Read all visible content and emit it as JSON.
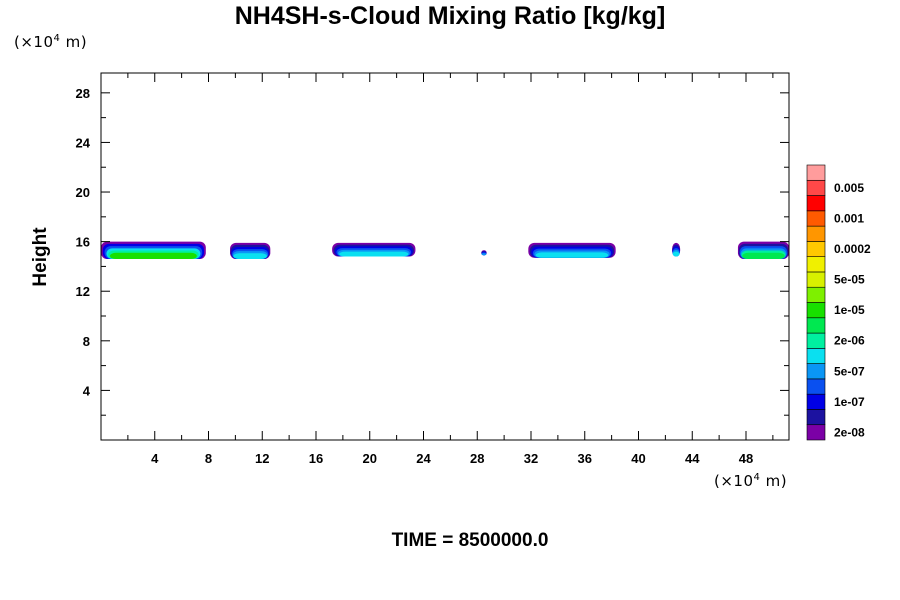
{
  "chart_data": {
    "type": "heatmap",
    "title": "NH4SH-s-Cloud Mixing Ratio [kg/kg]",
    "ylabel": "Height",
    "y_unit": {
      "prefix": "(×10",
      "exp": "4",
      "suffix": " m)"
    },
    "x_unit": {
      "prefix": "(×10",
      "exp": "4",
      "suffix": " m)"
    },
    "xlim": [
      0,
      51.2
    ],
    "ylim": [
      0,
      29.6
    ],
    "x_ticks": [
      4,
      8,
      12,
      16,
      20,
      24,
      28,
      32,
      36,
      40,
      44,
      48
    ],
    "y_ticks": [
      4,
      8,
      12,
      16,
      20,
      24,
      28
    ],
    "colorbar": {
      "colors": [
        "#7b00a6",
        "#1c12a0",
        "#0000e6",
        "#0a50f0",
        "#0a96f5",
        "#0ae0f0",
        "#00f0a0",
        "#00e850",
        "#18e000",
        "#7ef000",
        "#d8f000",
        "#f0f000",
        "#ffc800",
        "#ff9600",
        "#ff5a00",
        "#ff0000",
        "#ff4848",
        "#ff9c9c"
      ],
      "labels": [
        "2e-08",
        "1e-07",
        "5e-07",
        "2e-06",
        "1e-05",
        "5e-05",
        "0.0002",
        "0.001",
        "0.005"
      ]
    },
    "cloud_cells": [
      {
        "x0": 0.0,
        "x1": 7.8,
        "y0": 14.6,
        "y1": 16.0,
        "level": 8
      },
      {
        "x0": 9.6,
        "x1": 12.6,
        "y0": 14.6,
        "y1": 15.9,
        "level": 5
      },
      {
        "x0": 17.2,
        "x1": 23.4,
        "y0": 14.8,
        "y1": 15.9,
        "level": 5
      },
      {
        "x0": 28.3,
        "x1": 28.7,
        "y0": 14.9,
        "y1": 15.3,
        "level": 4
      },
      {
        "x0": 31.8,
        "x1": 38.3,
        "y0": 14.7,
        "y1": 15.9,
        "level": 5
      },
      {
        "x0": 42.5,
        "x1": 43.1,
        "y0": 14.8,
        "y1": 15.9,
        "level": 5
      },
      {
        "x0": 47.4,
        "x1": 51.2,
        "y0": 14.6,
        "y1": 16.0,
        "level": 7
      }
    ]
  },
  "time_label": "TIME = 8500000.0"
}
